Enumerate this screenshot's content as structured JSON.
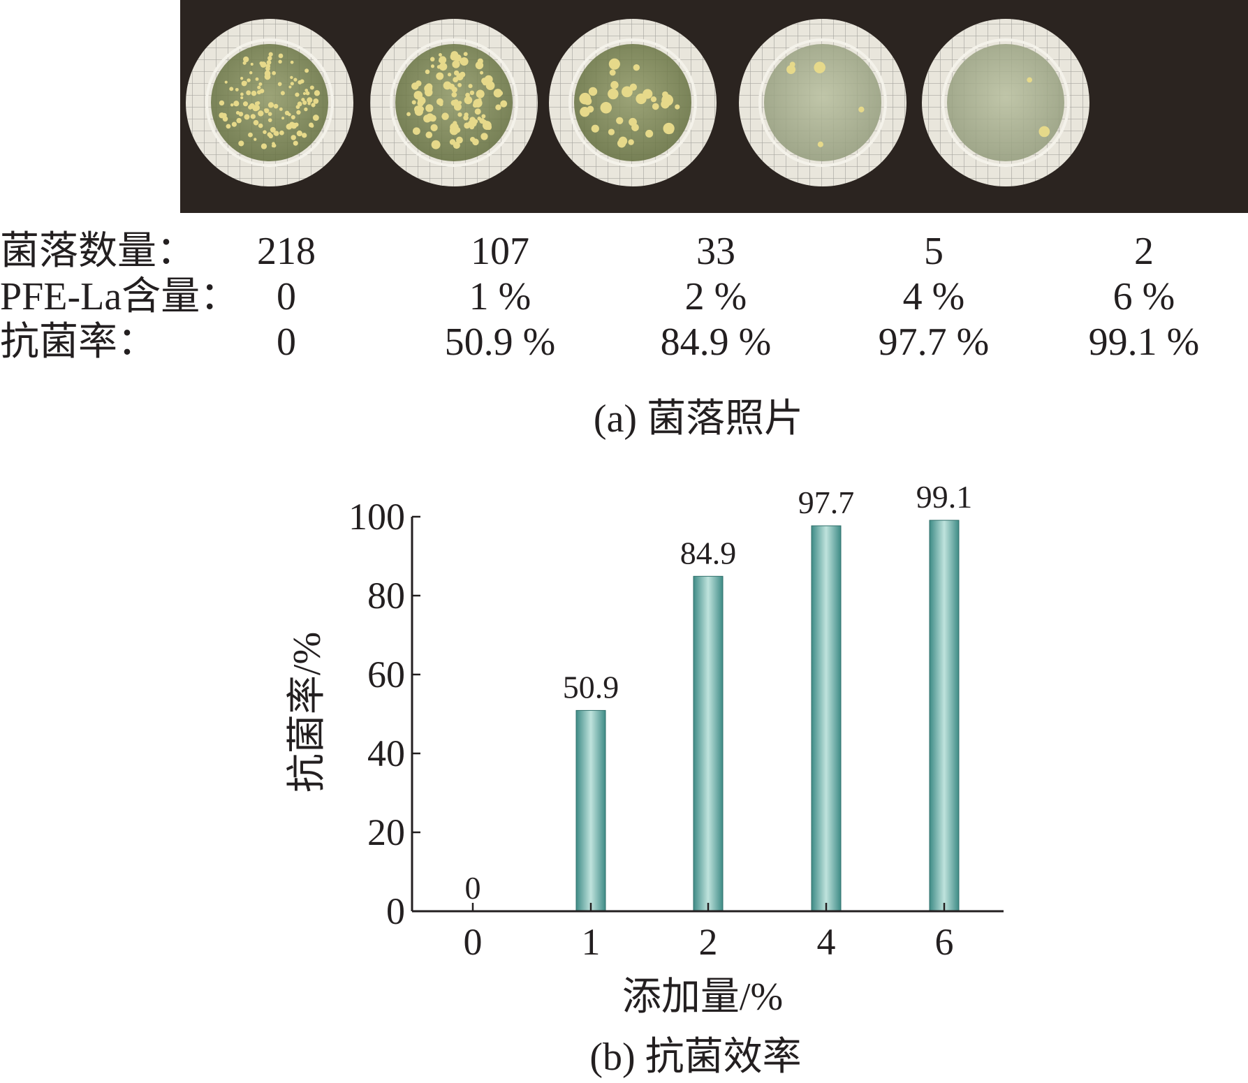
{
  "panel_a": {
    "rows": [
      {
        "label": "菌落数量：",
        "values": [
          "218",
          "107",
          "33",
          "5",
          "2"
        ]
      },
      {
        "label": "PFE-La含量：",
        "values": [
          "0",
          "1 %",
          "2 %",
          "4 %",
          "6 %"
        ]
      },
      {
        "label": "抗菌率：",
        "values": [
          "0",
          "50.9 %",
          "84.9 %",
          "97.7 %",
          "99.1 %"
        ]
      }
    ],
    "caption": "(a) 菌落照片",
    "colony_counts": [
      218,
      107,
      33,
      5,
      2
    ]
  },
  "panel_b": {
    "caption": "(b) 抗菌效率"
  },
  "chart_data": {
    "type": "bar",
    "categories": [
      "0",
      "1",
      "2",
      "4",
      "6"
    ],
    "values": [
      0,
      50.9,
      84.9,
      97.7,
      99.1
    ],
    "data_labels": [
      "0",
      "50.9",
      "84.9",
      "97.7",
      "99.1"
    ],
    "xlabel": "添加量/%",
    "ylabel": "抗菌率/%",
    "ylim": [
      0,
      100
    ],
    "yticks": [
      0,
      20,
      40,
      60,
      80,
      100
    ],
    "grid": false,
    "legend": "none",
    "bar_color": "#7fbfb9"
  }
}
